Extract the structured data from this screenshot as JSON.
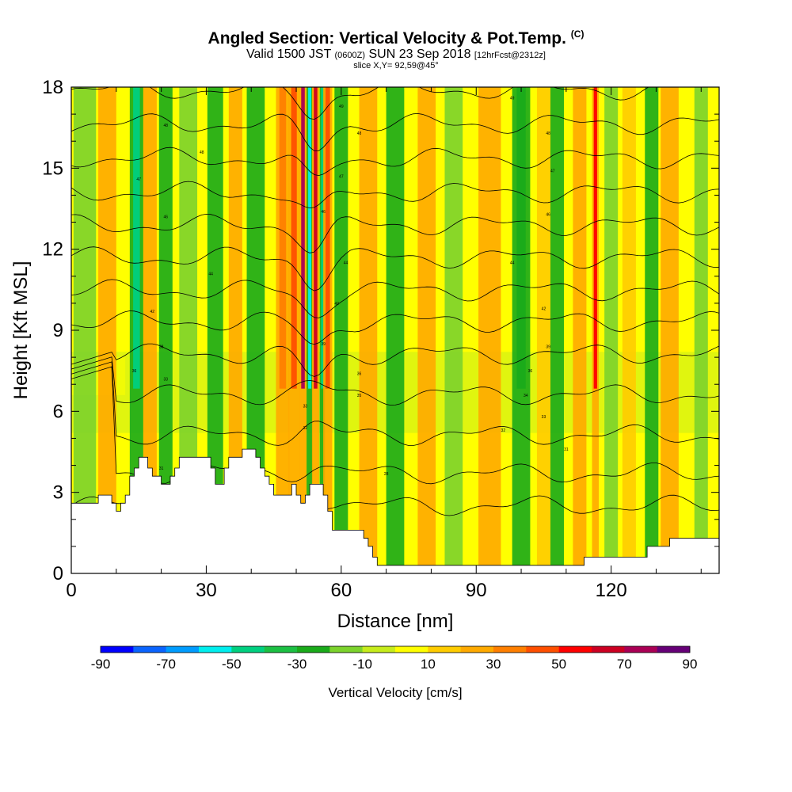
{
  "header": {
    "title": "Angled Section: Vertical Velocity & Pot.Temp.",
    "title_unit": "(C)",
    "valid_prefix": "Valid 1500 JST",
    "valid_utc": "(0600Z)",
    "valid_date": "SUN 23 Sep 2018",
    "forecast": "[12hrFcst@2312z]",
    "slice": "slice X,Y= 92,59@45°"
  },
  "chart_data": {
    "type": "heatmap",
    "title": "Angled Section: Vertical Velocity & Pot.Temp. (C)",
    "xlabel": "Distance [nm]",
    "ylabel": "Height [Kft MSL]",
    "xlim": [
      0,
      144
    ],
    "ylim": [
      0,
      18
    ],
    "x_ticks": [
      0,
      30,
      60,
      90,
      120
    ],
    "y_ticks": [
      0,
      3,
      6,
      9,
      12,
      15,
      18
    ],
    "field": "Vertical Velocity",
    "contour_field": "Pot.Temp.",
    "colorbar": {
      "label": "Vertical Velocity [cm/s]",
      "tick_values": [
        -90,
        -70,
        -50,
        -30,
        -10,
        10,
        30,
        50,
        70,
        90
      ],
      "levels": [
        -90,
        -80,
        -70,
        -60,
        -50,
        -40,
        -30,
        -20,
        -10,
        0,
        10,
        20,
        30,
        40,
        50,
        60,
        70,
        80,
        90
      ],
      "colors": [
        "#0000ff",
        "#0a64ff",
        "#009cff",
        "#00eeee",
        "#00d080",
        "#1cc043",
        "#1aab1a",
        "#7cd32c",
        "#c6ec1c",
        "#ffff00",
        "#ffcc00",
        "#ffaa00",
        "#ff7f00",
        "#ff4f00",
        "#ff0000",
        "#cc0022",
        "#aa0055",
        "#660077"
      ]
    },
    "vertical_velocity_bands": [
      {
        "x": 3,
        "w": 5,
        "value": -12
      },
      {
        "x": 8,
        "w": 4,
        "value": 22
      },
      {
        "x": 14.5,
        "w": 3,
        "value": -45
      },
      {
        "x": 17.5,
        "w": 3,
        "value": 25
      },
      {
        "x": 21,
        "w": 3,
        "value": -28
      },
      {
        "x": 26,
        "w": 4,
        "value": -18
      },
      {
        "x": 32,
        "w": 3.5,
        "value": -28
      },
      {
        "x": 36.5,
        "w": 3,
        "value": 22
      },
      {
        "x": 41,
        "w": 4,
        "value": -25
      },
      {
        "x": 47,
        "w": 3,
        "value": 35
      },
      {
        "x": 49.5,
        "w": 2.5,
        "value": 48
      },
      {
        "x": 51.5,
        "w": 1.6,
        "value": 75
      },
      {
        "x": 53,
        "w": 1.4,
        "value": -55
      },
      {
        "x": 54.3,
        "w": 1.6,
        "value": 60
      },
      {
        "x": 55.8,
        "w": 1.2,
        "value": -50
      },
      {
        "x": 57,
        "w": 2,
        "value": 45
      },
      {
        "x": 60,
        "w": 3,
        "value": -22
      },
      {
        "x": 66,
        "w": 4,
        "value": 22
      },
      {
        "x": 72,
        "w": 4,
        "value": -22
      },
      {
        "x": 79,
        "w": 4,
        "value": 22
      },
      {
        "x": 85,
        "w": 4,
        "value": -15
      },
      {
        "x": 93,
        "w": 5,
        "value": 20
      },
      {
        "x": 100,
        "w": 4,
        "value": -30
      },
      {
        "x": 105,
        "w": 3,
        "value": 18
      },
      {
        "x": 108,
        "w": 3,
        "value": -25
      },
      {
        "x": 113,
        "w": 3,
        "value": 25
      },
      {
        "x": 116.5,
        "w": 1.5,
        "value": 50
      },
      {
        "x": 120,
        "w": 3,
        "value": -18
      },
      {
        "x": 124,
        "w": 3,
        "value": 15
      },
      {
        "x": 129,
        "w": 3,
        "value": -22
      },
      {
        "x": 133,
        "w": 4,
        "value": 25
      },
      {
        "x": 140,
        "w": 3,
        "value": -12
      }
    ],
    "terrain": [
      [
        0,
        2.6
      ],
      [
        6,
        2.6
      ],
      [
        6,
        2.9
      ],
      [
        9,
        2.9
      ],
      [
        9,
        2.6
      ],
      [
        10,
        2.6
      ],
      [
        10,
        2.3
      ],
      [
        11,
        2.3
      ],
      [
        11,
        2.6
      ],
      [
        12,
        2.6
      ],
      [
        12,
        2.9
      ],
      [
        13,
        2.9
      ],
      [
        13,
        3.6
      ],
      [
        14,
        3.6
      ],
      [
        14,
        3.9
      ],
      [
        15,
        3.9
      ],
      [
        15,
        4.3
      ],
      [
        17,
        4.3
      ],
      [
        17,
        3.9
      ],
      [
        18,
        3.9
      ],
      [
        18,
        3.6
      ],
      [
        20,
        3.6
      ],
      [
        20,
        3.3
      ],
      [
        22,
        3.3
      ],
      [
        22,
        3.6
      ],
      [
        23,
        3.6
      ],
      [
        23,
        3.9
      ],
      [
        24,
        3.9
      ],
      [
        24,
        4.3
      ],
      [
        31,
        4.3
      ],
      [
        31,
        3.9
      ],
      [
        32,
        3.9
      ],
      [
        32,
        3.3
      ],
      [
        34,
        3.3
      ],
      [
        34,
        3.9
      ],
      [
        35,
        3.9
      ],
      [
        35,
        4.3
      ],
      [
        38,
        4.3
      ],
      [
        38,
        4.6
      ],
      [
        41,
        4.6
      ],
      [
        41,
        4.3
      ],
      [
        42,
        4.3
      ],
      [
        42,
        3.9
      ],
      [
        43,
        3.9
      ],
      [
        43,
        3.6
      ],
      [
        44,
        3.6
      ],
      [
        44,
        3.3
      ],
      [
        45,
        3.3
      ],
      [
        45,
        2.9
      ],
      [
        49,
        2.9
      ],
      [
        49,
        3.3
      ],
      [
        50,
        3.3
      ],
      [
        50,
        2.9
      ],
      [
        51,
        2.9
      ],
      [
        51,
        2.6
      ],
      [
        52,
        2.6
      ],
      [
        52,
        2.9
      ],
      [
        53,
        2.9
      ],
      [
        53,
        3.3
      ],
      [
        56,
        3.3
      ],
      [
        56,
        2.9
      ],
      [
        57,
        2.9
      ],
      [
        57,
        2.3
      ],
      [
        58,
        2.3
      ],
      [
        58,
        1.6
      ],
      [
        65,
        1.6
      ],
      [
        65,
        1.3
      ],
      [
        66,
        1.3
      ],
      [
        66,
        1.0
      ],
      [
        67,
        1.0
      ],
      [
        67,
        0.6
      ],
      [
        68,
        0.6
      ],
      [
        68,
        0.3
      ],
      [
        114,
        0.3
      ],
      [
        114,
        0.6
      ],
      [
        128,
        0.6
      ],
      [
        128,
        1.0
      ],
      [
        133,
        1.0
      ],
      [
        133,
        1.3
      ],
      [
        144,
        1.3
      ]
    ],
    "theta_contour_base_heights": [
      15.9,
      17.5,
      19.4,
      21.4,
      23.4,
      25.5,
      27.6,
      29.8,
      32.0,
      34.2,
      36.5,
      38.8,
      41.1
    ],
    "theta_contour_labels": [
      {
        "x": 21,
        "y": 16.6,
        "text": "48"
      },
      {
        "x": 29,
        "y": 15.6,
        "text": "48"
      },
      {
        "x": 15,
        "y": 14.6,
        "text": "47"
      },
      {
        "x": 21,
        "y": 13.2,
        "text": "46"
      },
      {
        "x": 31,
        "y": 11.1,
        "text": "44"
      },
      {
        "x": 18,
        "y": 9.7,
        "text": "42"
      },
      {
        "x": 20,
        "y": 8.4,
        "text": "38"
      },
      {
        "x": 14,
        "y": 7.5,
        "text": "36"
      },
      {
        "x": 21,
        "y": 7.2,
        "text": "33"
      },
      {
        "x": 20,
        "y": 3.9,
        "text": "31"
      },
      {
        "x": 60,
        "y": 17.3,
        "text": "49"
      },
      {
        "x": 64,
        "y": 16.3,
        "text": "48"
      },
      {
        "x": 60,
        "y": 14.7,
        "text": "47"
      },
      {
        "x": 56,
        "y": 13.4,
        "text": "46"
      },
      {
        "x": 61,
        "y": 11.5,
        "text": "44"
      },
      {
        "x": 59,
        "y": 10.0,
        "text": "42"
      },
      {
        "x": 56,
        "y": 8.5,
        "text": "39"
      },
      {
        "x": 64,
        "y": 7.4,
        "text": "36"
      },
      {
        "x": 64,
        "y": 6.6,
        "text": "35"
      },
      {
        "x": 52,
        "y": 6.2,
        "text": "33"
      },
      {
        "x": 52,
        "y": 5.4,
        "text": "32"
      },
      {
        "x": 70,
        "y": 3.7,
        "text": "28"
      },
      {
        "x": 98,
        "y": 17.6,
        "text": "49"
      },
      {
        "x": 106,
        "y": 16.3,
        "text": "48"
      },
      {
        "x": 107,
        "y": 14.9,
        "text": "47"
      },
      {
        "x": 106,
        "y": 13.3,
        "text": "46"
      },
      {
        "x": 98,
        "y": 11.5,
        "text": "44"
      },
      {
        "x": 105,
        "y": 9.8,
        "text": "42"
      },
      {
        "x": 106,
        "y": 8.4,
        "text": "39"
      },
      {
        "x": 102,
        "y": 7.5,
        "text": "36"
      },
      {
        "x": 101,
        "y": 6.6,
        "text": "34"
      },
      {
        "x": 105,
        "y": 5.8,
        "text": "33"
      },
      {
        "x": 96,
        "y": 5.3,
        "text": "32"
      },
      {
        "x": 110,
        "y": 4.6,
        "text": "31"
      }
    ]
  }
}
